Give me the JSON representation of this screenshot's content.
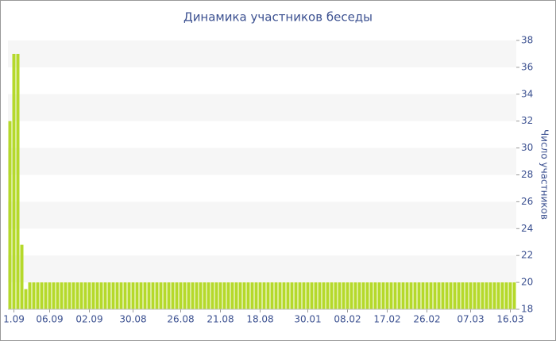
{
  "chart_data": {
    "type": "bar",
    "title": "Динамика участников беседы",
    "y_axis_label": "Число участников",
    "color": "#b5d92b",
    "ylim": [
      18,
      38
    ],
    "yticks": [
      18,
      20,
      22,
      24,
      26,
      28,
      30,
      32,
      34,
      36,
      38
    ],
    "grid": "bands",
    "categories": [
      null,
      "1.09",
      null,
      null,
      null,
      null,
      null,
      null,
      null,
      null,
      "06.09",
      null,
      null,
      null,
      null,
      null,
      null,
      null,
      null,
      null,
      "02.09",
      null,
      null,
      null,
      null,
      null,
      null,
      null,
      null,
      null,
      null,
      "30.08",
      null,
      null,
      null,
      null,
      null,
      null,
      null,
      null,
      null,
      null,
      null,
      "26.08",
      null,
      null,
      null,
      null,
      null,
      null,
      null,
      null,
      null,
      "21.08",
      null,
      null,
      null,
      null,
      null,
      null,
      null,
      null,
      null,
      "18.08",
      null,
      null,
      null,
      null,
      null,
      null,
      null,
      null,
      null,
      null,
      null,
      "30.01",
      null,
      null,
      null,
      null,
      null,
      null,
      null,
      null,
      null,
      "08.02",
      null,
      null,
      null,
      null,
      null,
      null,
      null,
      null,
      null,
      "17.02",
      null,
      null,
      null,
      null,
      null,
      null,
      null,
      null,
      null,
      "26.02",
      null,
      null,
      null,
      null,
      null,
      null,
      null,
      null,
      null,
      null,
      "07.03",
      null,
      null,
      null,
      null,
      null,
      null,
      null,
      null,
      null,
      "16.03",
      null
    ],
    "values": [
      32,
      37,
      37,
      22.8,
      19.5,
      20,
      20,
      20,
      20,
      20,
      20,
      20,
      20,
      20,
      20,
      20,
      20,
      20,
      20,
      20,
      20,
      20,
      20,
      20,
      20,
      20,
      20,
      20,
      20,
      20,
      20,
      20,
      20,
      20,
      20,
      20,
      20,
      20,
      20,
      20,
      20,
      20,
      20,
      20,
      20,
      20,
      20,
      20,
      20,
      20,
      20,
      20,
      20,
      20,
      20,
      20,
      20,
      20,
      20,
      20,
      20,
      20,
      20,
      20,
      20,
      20,
      20,
      20,
      20,
      20,
      20,
      20,
      20,
      20,
      20,
      20,
      20,
      20,
      20,
      20,
      20,
      20,
      20,
      20,
      20,
      20,
      20,
      20,
      20,
      20,
      20,
      20,
      20,
      20,
      20,
      20,
      20,
      20,
      20,
      20,
      20,
      20,
      20,
      20,
      20,
      20,
      20,
      20,
      20,
      20,
      20,
      20,
      20,
      20,
      20,
      20,
      20,
      20,
      20,
      20,
      20,
      20,
      20,
      20,
      20,
      20,
      20,
      20
    ]
  }
}
